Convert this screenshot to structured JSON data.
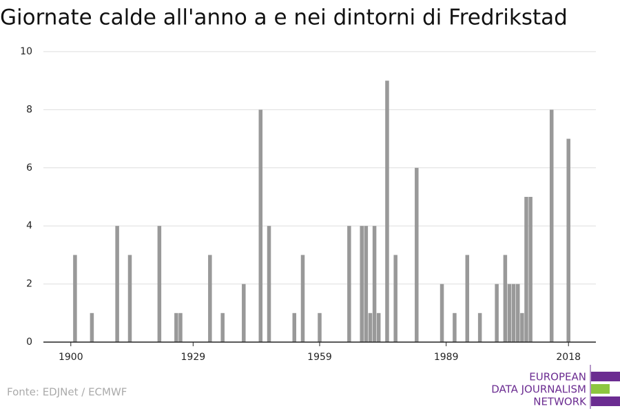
{
  "chart_data": {
    "type": "bar",
    "title": "Giornate calde all'anno a e nei dintorni di Fredrikstad",
    "x": [
      1901,
      1905,
      1911,
      1914,
      1921,
      1925,
      1926,
      1933,
      1936,
      1941,
      1945,
      1947,
      1953,
      1955,
      1959,
      1966,
      1969,
      1970,
      1971,
      1972,
      1973,
      1975,
      1977,
      1982,
      1988,
      1991,
      1994,
      1997,
      2001,
      2003,
      2004,
      2005,
      2006,
      2007,
      2008,
      2009,
      2014,
      2018
    ],
    "values": [
      3,
      1,
      4,
      3,
      4,
      1,
      1,
      3,
      1,
      2,
      8,
      4,
      1,
      3,
      1,
      4,
      4,
      4,
      1,
      4,
      1,
      9,
      3,
      6,
      2,
      1,
      3,
      1,
      2,
      3,
      2,
      2,
      2,
      1,
      5,
      5,
      8,
      7
    ],
    "color": "#999999",
    "xlim": [
      1893.5,
      2024.5
    ],
    "xticks": [
      1900,
      1929,
      1959,
      1989,
      2018
    ],
    "ylim": [
      0,
      10
    ],
    "yticks": [
      0,
      2,
      4,
      6,
      8,
      10
    ],
    "grid": true,
    "source": "Fonte: EDJNet / ECMWF",
    "logo": [
      "EUROPEAN",
      "DATA JOURNALISM",
      "NETWORK"
    ]
  }
}
